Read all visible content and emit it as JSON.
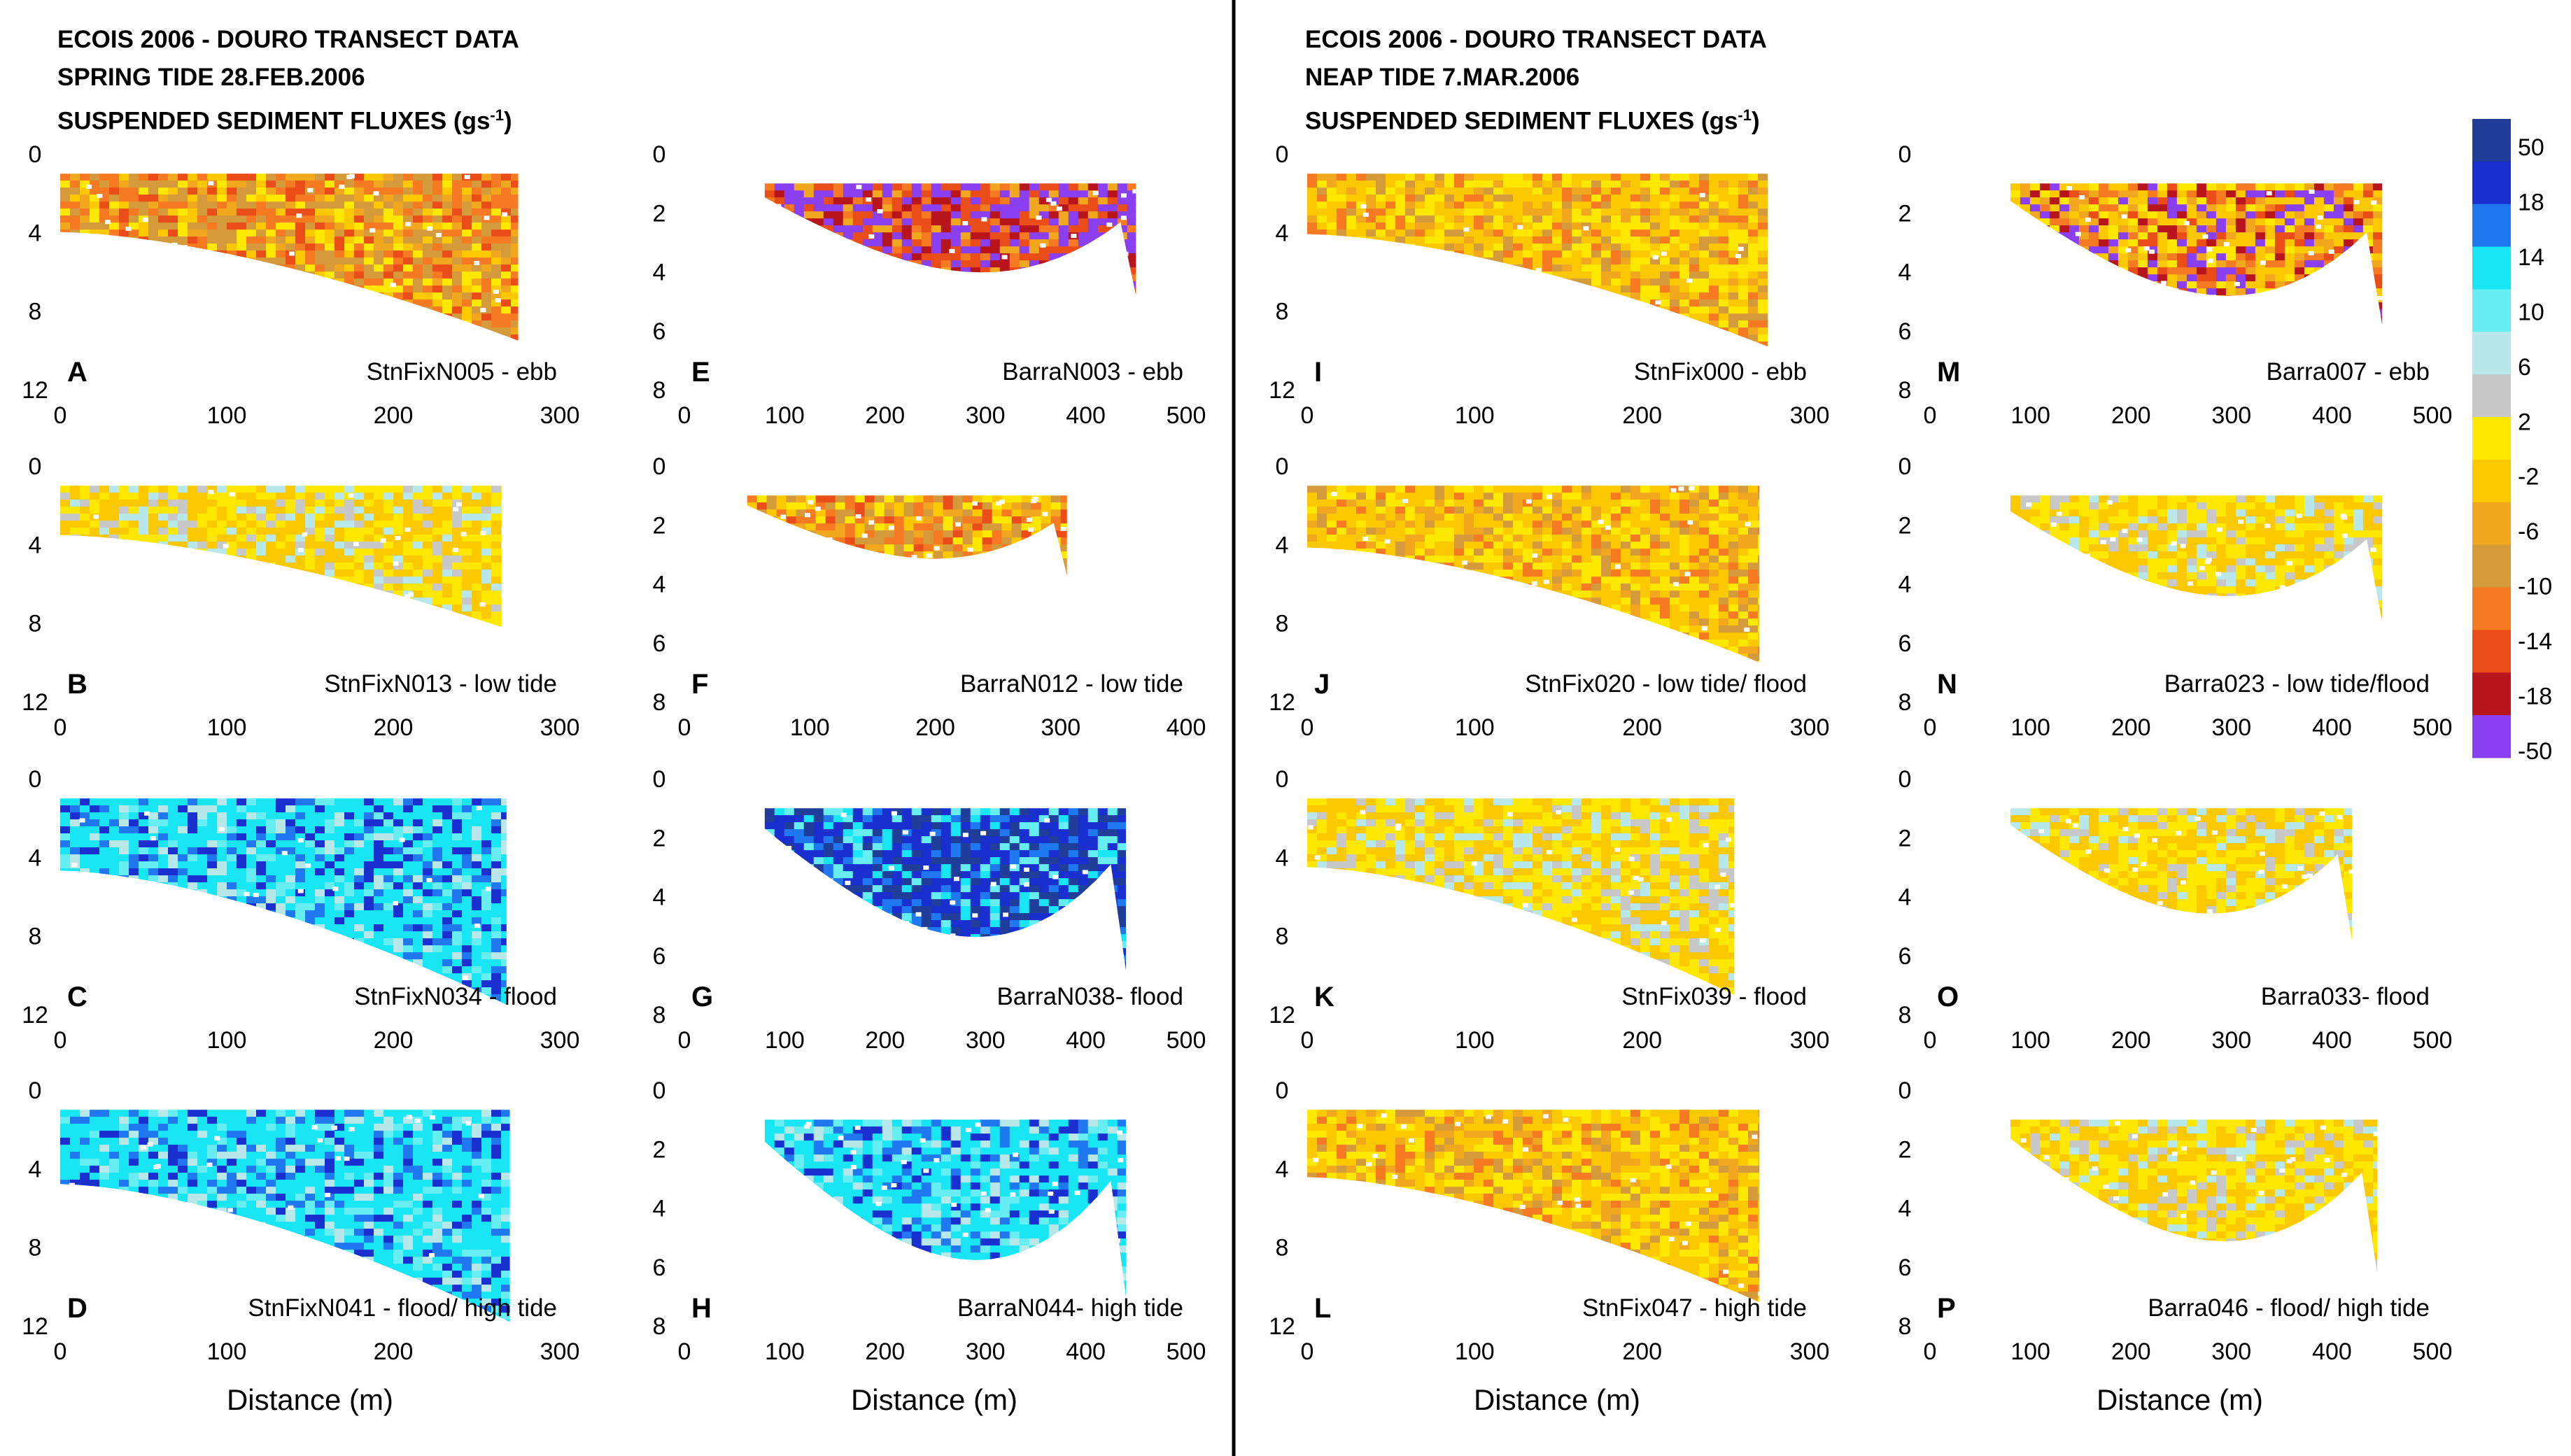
{
  "headers": [
    {
      "line1": "ECOIS 2006 - DOURO  TRANSECT DATA",
      "line2": "SPRING TIDE 28.FEB.2006",
      "line3_prefix": "SUSPENDED SEDIMENT FLUXES (gs",
      "line3_exp": "-1",
      "line3_suffix": ")"
    },
    {
      "line1": "ECOIS 2006 - DOURO  TRANSECT DATA",
      "line2": "NEAP TIDE 7.MAR.2006",
      "line3_prefix": "SUSPENDED SEDIMENT FLUXES (gs",
      "line3_exp": "-1",
      "line3_suffix": ")"
    }
  ],
  "x_axis_title": "Distance (m)",
  "colorbar": {
    "labels": [
      "50",
      "18",
      "14",
      "10",
      "6",
      "2",
      "-2",
      "-6",
      "-10",
      "-14",
      "-18",
      "-50"
    ],
    "colors": [
      "#1f3d99",
      "#1a2fd0",
      "#1f78f0",
      "#19e6f5",
      "#66eef2",
      "#b8e8ea",
      "#c8c8c8",
      "#fee800",
      "#fcc800",
      "#f1a81e",
      "#d59a3a",
      "#f57a22",
      "#ea4d18",
      "#b8141c",
      "#8a3ff0"
    ]
  },
  "chart_data": [
    {
      "id": "A",
      "type": "heatmap",
      "label": "StnFixN005 - ebb",
      "depth_ticks": [
        0,
        4,
        8,
        12
      ],
      "ylim": [
        12,
        0
      ],
      "distance_ticks": [
        0,
        100,
        200,
        300
      ],
      "xlim": [
        0,
        300
      ],
      "max_distance": 275,
      "max_depth": 9.5,
      "tide": "ebb",
      "palette": "orange"
    },
    {
      "id": "B",
      "type": "heatmap",
      "label": "StnFixN013 - low tide",
      "depth_ticks": [
        0,
        4,
        8,
        12
      ],
      "ylim": [
        12,
        0
      ],
      "distance_ticks": [
        0,
        100,
        200,
        300
      ],
      "xlim": [
        0,
        300
      ],
      "max_distance": 265,
      "max_depth": 8.2,
      "tide": "low",
      "palette": "yellow"
    },
    {
      "id": "C",
      "type": "heatmap",
      "label": "StnFixN034 - flood",
      "depth_ticks": [
        0,
        4,
        8,
        12
      ],
      "ylim": [
        12,
        0
      ],
      "distance_ticks": [
        0,
        100,
        200,
        300
      ],
      "xlim": [
        0,
        300
      ],
      "max_distance": 268,
      "max_depth": 11.5,
      "tide": "flood",
      "palette": "cyan"
    },
    {
      "id": "D",
      "type": "heatmap",
      "label": "StnFixN041 - flood/ high tide",
      "depth_ticks": [
        0,
        4,
        8,
        12
      ],
      "ylim": [
        12,
        0
      ],
      "distance_ticks": [
        0,
        100,
        200,
        300
      ],
      "xlim": [
        0,
        300
      ],
      "max_distance": 270,
      "max_depth": 11.8,
      "tide": "high",
      "palette": "cyan"
    },
    {
      "id": "E",
      "type": "heatmap",
      "label": "BarraN003 - ebb",
      "depth_ticks": [
        0,
        2,
        4,
        6,
        8
      ],
      "ylim": [
        8,
        0
      ],
      "distance_ticks": [
        0,
        100,
        200,
        300,
        400,
        500
      ],
      "xlim": [
        0,
        500
      ],
      "max_distance": 450,
      "max_depth": 4.8,
      "tide": "ebb",
      "palette": "red"
    },
    {
      "id": "F",
      "type": "heatmap",
      "label": "BarraN012 - low tide",
      "depth_ticks": [
        0,
        2,
        4,
        6,
        8
      ],
      "ylim": [
        8,
        0
      ],
      "distance_ticks": [
        0,
        100,
        200,
        300,
        400
      ],
      "xlim": [
        0,
        400
      ],
      "max_distance": 305,
      "max_depth": 3.7,
      "tide": "low",
      "palette": "orange"
    },
    {
      "id": "G",
      "type": "heatmap",
      "label": "BarraN038- flood",
      "depth_ticks": [
        0,
        2,
        4,
        6,
        8
      ],
      "ylim": [
        8,
        0
      ],
      "distance_ticks": [
        0,
        100,
        200,
        300,
        400,
        500
      ],
      "xlim": [
        0,
        500
      ],
      "max_distance": 440,
      "max_depth": 6.5,
      "tide": "flood",
      "palette": "blue"
    },
    {
      "id": "H",
      "type": "heatmap",
      "label": "BarraN044- high tide",
      "depth_ticks": [
        0,
        2,
        4,
        6,
        8
      ],
      "ylim": [
        8,
        0
      ],
      "distance_ticks": [
        0,
        100,
        200,
        300,
        400,
        500
      ],
      "xlim": [
        0,
        500
      ],
      "max_distance": 440,
      "max_depth": 7.0,
      "tide": "high",
      "palette": "cyan"
    },
    {
      "id": "I",
      "type": "heatmap",
      "label": "StnFix000 - ebb",
      "depth_ticks": [
        0,
        4,
        8,
        12
      ],
      "ylim": [
        12,
        0
      ],
      "distance_ticks": [
        0,
        100,
        200,
        300
      ],
      "xlim": [
        0,
        300
      ],
      "max_distance": 275,
      "max_depth": 9.8,
      "tide": "ebb",
      "palette": "yellow-orange"
    },
    {
      "id": "J",
      "type": "heatmap",
      "label": "StnFix020 - low tide/ flood",
      "depth_ticks": [
        0,
        4,
        8,
        12
      ],
      "ylim": [
        12,
        0
      ],
      "distance_ticks": [
        0,
        100,
        200,
        300
      ],
      "xlim": [
        0,
        300
      ],
      "max_distance": 270,
      "max_depth": 10.0,
      "tide": "low",
      "palette": "yellow-orange"
    },
    {
      "id": "K",
      "type": "heatmap",
      "label": "StnFix039 - flood",
      "depth_ticks": [
        0,
        4,
        8,
        12
      ],
      "ylim": [
        12,
        0
      ],
      "distance_ticks": [
        0,
        100,
        200,
        300
      ],
      "xlim": [
        0,
        300
      ],
      "max_distance": 255,
      "max_depth": 11.0,
      "tide": "flood",
      "palette": "yellow"
    },
    {
      "id": "L",
      "type": "heatmap",
      "label": "StnFix047 - high tide",
      "depth_ticks": [
        0,
        4,
        8,
        12
      ],
      "ylim": [
        12,
        0
      ],
      "distance_ticks": [
        0,
        100,
        200,
        300
      ],
      "xlim": [
        0,
        300
      ],
      "max_distance": 270,
      "max_depth": 10.8,
      "tide": "high",
      "palette": "yellow-orange"
    },
    {
      "id": "M",
      "type": "heatmap",
      "label": "Barra007 - ebb",
      "depth_ticks": [
        0,
        2,
        4,
        6,
        8
      ],
      "ylim": [
        8,
        0
      ],
      "distance_ticks": [
        0,
        100,
        200,
        300,
        400,
        500
      ],
      "xlim": [
        0,
        500
      ],
      "max_distance": 450,
      "max_depth": 5.8,
      "tide": "ebb",
      "palette": "red-yellow"
    },
    {
      "id": "N",
      "type": "heatmap",
      "label": "Barra023 - low tide/flood",
      "depth_ticks": [
        0,
        2,
        4,
        6,
        8
      ],
      "ylim": [
        8,
        0
      ],
      "distance_ticks": [
        0,
        100,
        200,
        300,
        400,
        500
      ],
      "xlim": [
        0,
        500
      ],
      "max_distance": 450,
      "max_depth": 5.3,
      "tide": "low",
      "palette": "yellow"
    },
    {
      "id": "O",
      "type": "heatmap",
      "label": "Barra033- flood",
      "depth_ticks": [
        0,
        2,
        4,
        6,
        8
      ],
      "ylim": [
        8,
        0
      ],
      "distance_ticks": [
        0,
        100,
        200,
        300,
        400,
        500
      ],
      "xlim": [
        0,
        500
      ],
      "max_distance": 420,
      "max_depth": 5.5,
      "tide": "flood",
      "palette": "yellow"
    },
    {
      "id": "P",
      "type": "heatmap",
      "label": "Barra046 - flood/ high tide",
      "depth_ticks": [
        0,
        2,
        4,
        6,
        8
      ],
      "ylim": [
        8,
        0
      ],
      "distance_ticks": [
        0,
        100,
        200,
        300,
        400,
        500
      ],
      "xlim": [
        0,
        500
      ],
      "max_distance": 445,
      "max_depth": 6.2,
      "tide": "high",
      "palette": "yellow"
    }
  ]
}
